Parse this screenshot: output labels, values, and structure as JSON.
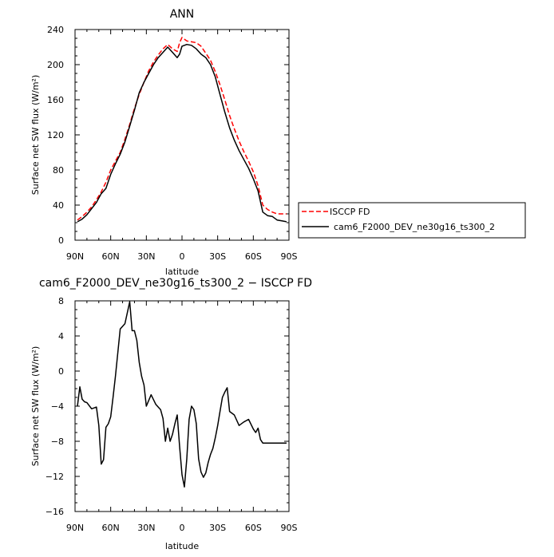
{
  "chart_data": [
    {
      "type": "line",
      "title": "ANN",
      "xlabel": "latitude",
      "ylabel": "Surface net SW flux (W/m²)",
      "x_ticks": [
        {
          "value": -90,
          "label": "90N"
        },
        {
          "value": -60,
          "label": "60N"
        },
        {
          "value": -30,
          "label": "30N"
        },
        {
          "value": 0,
          "label": "0"
        },
        {
          "value": 30,
          "label": "30S"
        },
        {
          "value": 60,
          "label": "60S"
        },
        {
          "value": 90,
          "label": "90S"
        }
      ],
      "y_ticks": [
        {
          "value": 0,
          "label": "0"
        },
        {
          "value": 40,
          "label": "40"
        },
        {
          "value": 80,
          "label": "80"
        },
        {
          "value": 120,
          "label": "120"
        },
        {
          "value": 160,
          "label": "160"
        },
        {
          "value": 200,
          "label": "200"
        },
        {
          "value": 240,
          "label": "240"
        }
      ],
      "xlim": [
        -90,
        90
      ],
      "ylim": [
        0,
        240
      ],
      "grid": false,
      "legend_position": "right",
      "series": [
        {
          "name": "ISCCP FD",
          "color": "#ff0000",
          "dash": "dashed",
          "x": [
            -88,
            -84,
            -80,
            -76,
            -72,
            -68,
            -64,
            -60,
            -56,
            -52,
            -48,
            -44,
            -40,
            -36,
            -32,
            -28,
            -24,
            -20,
            -16,
            -12,
            -8,
            -4,
            -2,
            0,
            4,
            8,
            12,
            16,
            20,
            24,
            28,
            32,
            36,
            40,
            44,
            48,
            52,
            56,
            60,
            64,
            68,
            72,
            76,
            80,
            84,
            88
          ],
          "y": [
            23,
            27,
            32,
            38,
            46,
            55,
            66,
            80,
            90,
            100,
            115,
            132,
            150,
            166,
            180,
            193,
            203,
            211,
            218,
            223,
            218,
            215,
            225,
            231,
            227,
            226,
            225,
            221,
            213,
            205,
            192,
            177,
            160,
            142,
            127,
            113,
            101,
            90,
            78,
            62,
            40,
            35,
            32,
            30,
            30,
            30
          ]
        },
        {
          "name": "cam6_F2000_DEV_ne30g16_ts300_2",
          "color": "#000000",
          "dash": "solid",
          "x": [
            -88,
            -84,
            -80,
            -76,
            -72,
            -68,
            -64,
            -60,
            -56,
            -52,
            -48,
            -44,
            -40,
            -36,
            -32,
            -28,
            -24,
            -20,
            -16,
            -12,
            -8,
            -4,
            -2,
            0,
            4,
            8,
            12,
            16,
            20,
            24,
            28,
            32,
            36,
            40,
            44,
            48,
            52,
            56,
            60,
            64,
            68,
            72,
            76,
            80,
            84,
            88
          ],
          "y": [
            21,
            24,
            29,
            36,
            43,
            53,
            59,
            75,
            87,
            98,
            112,
            130,
            148,
            168,
            180,
            190,
            200,
            208,
            214,
            220,
            214,
            208,
            212,
            221,
            223,
            222,
            218,
            212,
            208,
            200,
            186,
            166,
            146,
            128,
            114,
            102,
            92,
            82,
            70,
            56,
            32,
            28,
            27,
            23,
            22,
            21
          ]
        }
      ]
    },
    {
      "type": "line",
      "title": "cam6_F2000_DEV_ne30g16_ts300_2 − ISCCP FD",
      "xlabel": "latitude",
      "ylabel": "Surface net SW flux (W/m²)",
      "x_ticks": [
        {
          "value": -90,
          "label": "90N"
        },
        {
          "value": -60,
          "label": "60N"
        },
        {
          "value": -30,
          "label": "30N"
        },
        {
          "value": 0,
          "label": "0"
        },
        {
          "value": 30,
          "label": "30S"
        },
        {
          "value": 60,
          "label": "60S"
        },
        {
          "value": 90,
          "label": "90S"
        }
      ],
      "y_ticks": [
        {
          "value": -16,
          "label": "−16"
        },
        {
          "value": -12,
          "label": "−12"
        },
        {
          "value": -8,
          "label": "−8"
        },
        {
          "value": -4,
          "label": "−4"
        },
        {
          "value": 0,
          "label": "0"
        },
        {
          "value": 4,
          "label": "4"
        },
        {
          "value": 8,
          "label": "8"
        }
      ],
      "xlim": [
        -90,
        90
      ],
      "ylim": [
        -16,
        8
      ],
      "grid": false,
      "series": [
        {
          "color": "#000000",
          "dash": "solid",
          "x": [
            -88,
            -86,
            -84,
            -82,
            -80,
            -76,
            -72,
            -70,
            -68,
            -66,
            -64,
            -62,
            -60,
            -58,
            -56,
            -52,
            -48,
            -44,
            -42,
            -40,
            -38,
            -36,
            -34,
            -32,
            -30,
            -26,
            -22,
            -18,
            -16,
            -14,
            -12,
            -10,
            -8,
            -6,
            -4,
            -2,
            0,
            2,
            4,
            6,
            8,
            10,
            12,
            14,
            16,
            18,
            20,
            22,
            24,
            26,
            28,
            30,
            32,
            34,
            36,
            38,
            40,
            44,
            48,
            52,
            56,
            60,
            62,
            64,
            66,
            68,
            70,
            72,
            74,
            76,
            78,
            80,
            82,
            84,
            86,
            88
          ],
          "y": [
            -4,
            -1.8,
            -3.2,
            -3.5,
            -3.6,
            -4.3,
            -4.1,
            -6.2,
            -10.6,
            -10.1,
            -6.4,
            -6.0,
            -5.2,
            -3.0,
            -0.6,
            4.8,
            5.4,
            7.9,
            4.6,
            4.6,
            3.5,
            1.0,
            -0.6,
            -1.6,
            -4.0,
            -2.7,
            -3.8,
            -4.4,
            -5.4,
            -8.0,
            -6.5,
            -8.0,
            -7.2,
            -6.0,
            -5.0,
            -8.6,
            -11.8,
            -13.2,
            -10.0,
            -5.5,
            -4.0,
            -4.4,
            -6.0,
            -10.0,
            -11.5,
            -12.1,
            -11.6,
            -10.4,
            -9.5,
            -8.8,
            -7.6,
            -6.2,
            -4.6,
            -3.0,
            -2.4,
            -1.9,
            -4.6,
            -5.0,
            -6.2,
            -5.8,
            -5.5,
            -6.6,
            -7.0,
            -6.5,
            -7.8,
            -8.2,
            -8.2,
            -8.2,
            -8.2,
            -8.2,
            -8.2,
            -8.2,
            -8.2,
            -8.2,
            -8.2,
            -8.2
          ]
        }
      ]
    }
  ]
}
